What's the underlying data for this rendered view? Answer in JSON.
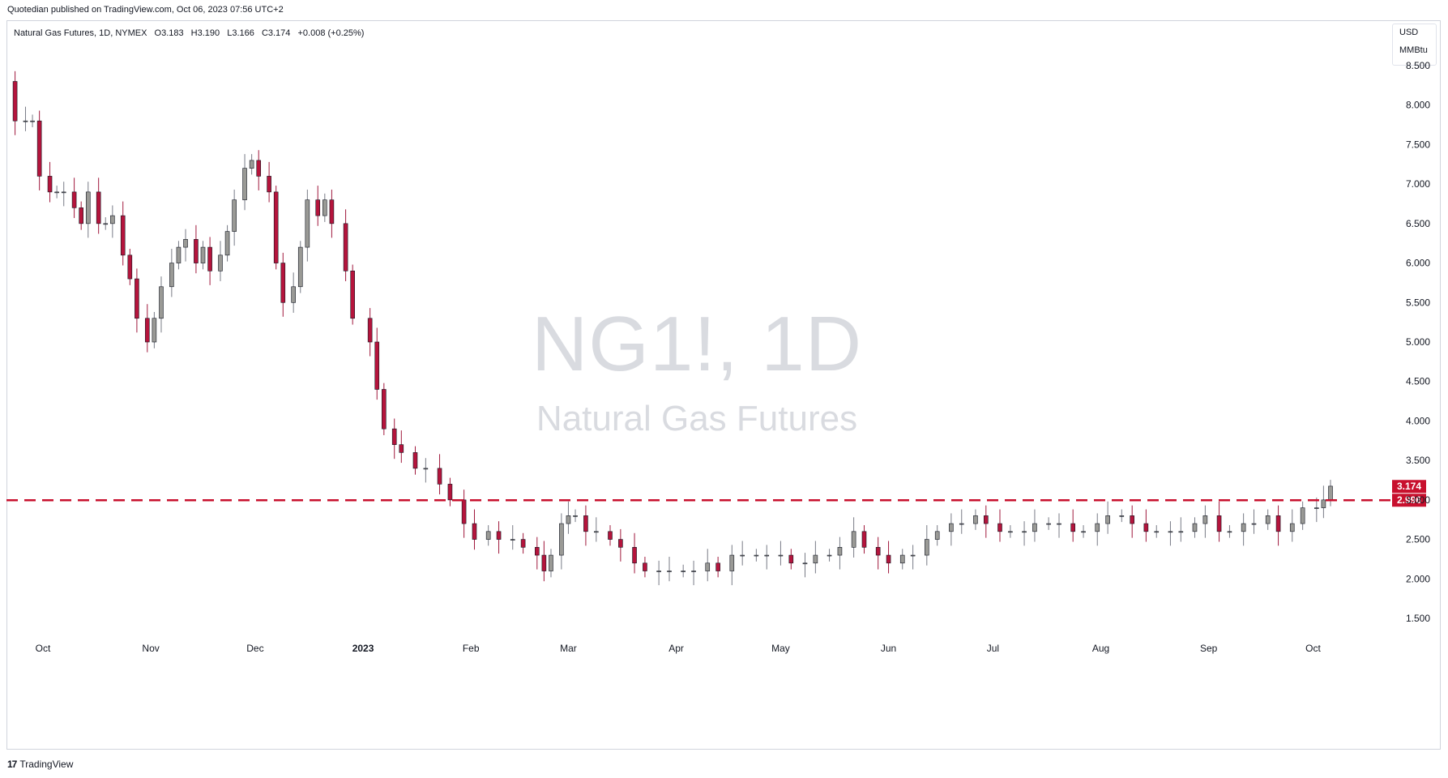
{
  "header": {
    "published": "Quotedian published on TradingView.com, Oct 06, 2023 07:56 UTC+2"
  },
  "legend": {
    "symbol": "Natural Gas Futures, 1D, NYMEX",
    "open": "O3.183",
    "high": "H3.190",
    "low": "L3.166",
    "close": "C3.174",
    "change": "+0.008 (+0.25%)"
  },
  "units": {
    "currency": "USD",
    "unit": "MMBtu"
  },
  "watermark": {
    "title": "NG1!, 1D",
    "subtitle": "Natural Gas Futures"
  },
  "footer": {
    "brand": "TradingView",
    "logo_glyph": "17"
  },
  "colors": {
    "up": "#9a9a96",
    "down": "#b5143c",
    "wick_up": "#787b86",
    "wick_down": "#a0183c",
    "level_line": "#c8102e",
    "axis_text": "#131722"
  },
  "chart_data": {
    "type": "candlestick",
    "title": "Natural Gas Futures, 1D, NYMEX",
    "ylim": [
      1.5,
      8.5
    ],
    "yticks": [
      "8.500",
      "8.000",
      "7.500",
      "7.000",
      "6.500",
      "6.000",
      "5.500",
      "5.000",
      "4.500",
      "4.000",
      "3.500",
      "3.000",
      "2.500",
      "2.000",
      "1.500"
    ],
    "xlim": [
      "2022-09-21",
      "2023-10-23"
    ],
    "xticks": [
      {
        "label": "Oct",
        "date": "2022-10-01",
        "bold": false
      },
      {
        "label": "Nov",
        "date": "2022-11-01",
        "bold": false
      },
      {
        "label": "Dec",
        "date": "2022-12-01",
        "bold": false
      },
      {
        "label": "2023",
        "date": "2023-01-01",
        "bold": true
      },
      {
        "label": "Feb",
        "date": "2023-02-01",
        "bold": false
      },
      {
        "label": "Mar",
        "date": "2023-03-01",
        "bold": false
      },
      {
        "label": "Apr",
        "date": "2023-04-01",
        "bold": false
      },
      {
        "label": "May",
        "date": "2023-05-01",
        "bold": false
      },
      {
        "label": "Jun",
        "date": "2023-06-01",
        "bold": false
      },
      {
        "label": "Jul",
        "date": "2023-07-01",
        "bold": false
      },
      {
        "label": "Aug",
        "date": "2023-08-01",
        "bold": false
      },
      {
        "label": "Sep",
        "date": "2023-09-01",
        "bold": false
      },
      {
        "label": "Oct",
        "date": "2023-10-01",
        "bold": false
      }
    ],
    "horizontal_line": {
      "value": 2.996,
      "label": "2.996",
      "style": "dashed"
    },
    "last_price": {
      "value": 3.174,
      "label": "3.174"
    },
    "close_series": {
      "name": "NG1!",
      "points": [
        [
          "2022-09-21",
          8.3
        ],
        [
          "2022-09-23",
          7.8
        ],
        [
          "2022-09-26",
          7.8
        ],
        [
          "2022-09-28",
          7.8
        ],
        [
          "2022-09-30",
          7.1
        ],
        [
          "2022-10-03",
          6.9
        ],
        [
          "2022-10-05",
          6.9
        ],
        [
          "2022-10-07",
          6.9
        ],
        [
          "2022-10-10",
          6.7
        ],
        [
          "2022-10-12",
          6.5
        ],
        [
          "2022-10-14",
          6.9
        ],
        [
          "2022-10-17",
          6.5
        ],
        [
          "2022-10-19",
          6.5
        ],
        [
          "2022-10-21",
          6.6
        ],
        [
          "2022-10-24",
          6.1
        ],
        [
          "2022-10-26",
          5.8
        ],
        [
          "2022-10-28",
          5.3
        ],
        [
          "2022-10-31",
          5.0
        ],
        [
          "2022-11-02",
          5.3
        ],
        [
          "2022-11-04",
          5.7
        ],
        [
          "2022-11-07",
          6.0
        ],
        [
          "2022-11-09",
          6.2
        ],
        [
          "2022-11-11",
          6.3
        ],
        [
          "2022-11-14",
          6.0
        ],
        [
          "2022-11-16",
          6.2
        ],
        [
          "2022-11-18",
          5.9
        ],
        [
          "2022-11-21",
          6.1
        ],
        [
          "2022-11-23",
          6.4
        ],
        [
          "2022-11-25",
          6.8
        ],
        [
          "2022-11-28",
          7.2
        ],
        [
          "2022-11-30",
          7.3
        ],
        [
          "2022-12-02",
          7.1
        ],
        [
          "2022-12-05",
          6.9
        ],
        [
          "2022-12-07",
          6.0
        ],
        [
          "2022-12-09",
          5.5
        ],
        [
          "2022-12-12",
          5.7
        ],
        [
          "2022-12-14",
          6.2
        ],
        [
          "2022-12-16",
          6.8
        ],
        [
          "2022-12-19",
          6.6
        ],
        [
          "2022-12-21",
          6.8
        ],
        [
          "2022-12-23",
          6.5
        ],
        [
          "2022-12-27",
          5.9
        ],
        [
          "2022-12-29",
          5.3
        ],
        [
          "2023-01-03",
          5.0
        ],
        [
          "2023-01-05",
          4.4
        ],
        [
          "2023-01-07",
          3.9
        ],
        [
          "2023-01-10",
          3.7
        ],
        [
          "2023-01-12",
          3.6
        ],
        [
          "2023-01-16",
          3.4
        ],
        [
          "2023-01-19",
          3.4
        ],
        [
          "2023-01-23",
          3.2
        ],
        [
          "2023-01-26",
          3.0
        ],
        [
          "2023-01-30",
          2.7
        ],
        [
          "2023-02-02",
          2.5
        ],
        [
          "2023-02-06",
          2.6
        ],
        [
          "2023-02-09",
          2.5
        ],
        [
          "2023-02-13",
          2.5
        ],
        [
          "2023-02-16",
          2.4
        ],
        [
          "2023-02-20",
          2.3
        ],
        [
          "2023-02-22",
          2.1
        ],
        [
          "2023-02-24",
          2.3
        ],
        [
          "2023-02-27",
          2.7
        ],
        [
          "2023-03-01",
          2.8
        ],
        [
          "2023-03-03",
          2.8
        ],
        [
          "2023-03-06",
          2.6
        ],
        [
          "2023-03-09",
          2.6
        ],
        [
          "2023-03-13",
          2.5
        ],
        [
          "2023-03-16",
          2.4
        ],
        [
          "2023-03-20",
          2.2
        ],
        [
          "2023-03-23",
          2.1
        ],
        [
          "2023-03-27",
          2.1
        ],
        [
          "2023-03-30",
          2.1
        ],
        [
          "2023-04-03",
          2.1
        ],
        [
          "2023-04-06",
          2.1
        ],
        [
          "2023-04-10",
          2.2
        ],
        [
          "2023-04-13",
          2.1
        ],
        [
          "2023-04-17",
          2.3
        ],
        [
          "2023-04-20",
          2.3
        ],
        [
          "2023-04-24",
          2.3
        ],
        [
          "2023-04-27",
          2.3
        ],
        [
          "2023-05-01",
          2.3
        ],
        [
          "2023-05-04",
          2.2
        ],
        [
          "2023-05-08",
          2.2
        ],
        [
          "2023-05-11",
          2.3
        ],
        [
          "2023-05-15",
          2.3
        ],
        [
          "2023-05-18",
          2.4
        ],
        [
          "2023-05-22",
          2.6
        ],
        [
          "2023-05-25",
          2.4
        ],
        [
          "2023-05-29",
          2.3
        ],
        [
          "2023-06-01",
          2.2
        ],
        [
          "2023-06-05",
          2.3
        ],
        [
          "2023-06-08",
          2.3
        ],
        [
          "2023-06-12",
          2.5
        ],
        [
          "2023-06-15",
          2.6
        ],
        [
          "2023-06-19",
          2.7
        ],
        [
          "2023-06-22",
          2.7
        ],
        [
          "2023-06-26",
          2.8
        ],
        [
          "2023-06-29",
          2.7
        ],
        [
          "2023-07-03",
          2.6
        ],
        [
          "2023-07-06",
          2.6
        ],
        [
          "2023-07-10",
          2.6
        ],
        [
          "2023-07-13",
          2.7
        ],
        [
          "2023-07-17",
          2.7
        ],
        [
          "2023-07-20",
          2.7
        ],
        [
          "2023-07-24",
          2.6
        ],
        [
          "2023-07-27",
          2.6
        ],
        [
          "2023-07-31",
          2.7
        ],
        [
          "2023-08-03",
          2.8
        ],
        [
          "2023-08-07",
          2.8
        ],
        [
          "2023-08-10",
          2.7
        ],
        [
          "2023-08-14",
          2.6
        ],
        [
          "2023-08-17",
          2.6
        ],
        [
          "2023-08-21",
          2.6
        ],
        [
          "2023-08-24",
          2.6
        ],
        [
          "2023-08-28",
          2.7
        ],
        [
          "2023-08-31",
          2.8
        ],
        [
          "2023-09-04",
          2.6
        ],
        [
          "2023-09-07",
          2.6
        ],
        [
          "2023-09-11",
          2.7
        ],
        [
          "2023-09-14",
          2.7
        ],
        [
          "2023-09-18",
          2.8
        ],
        [
          "2023-09-21",
          2.6
        ],
        [
          "2023-09-25",
          2.7
        ],
        [
          "2023-09-28",
          2.9
        ],
        [
          "2023-10-02",
          2.9
        ],
        [
          "2023-10-04",
          3.0
        ],
        [
          "2023-10-06",
          3.174
        ]
      ]
    }
  }
}
